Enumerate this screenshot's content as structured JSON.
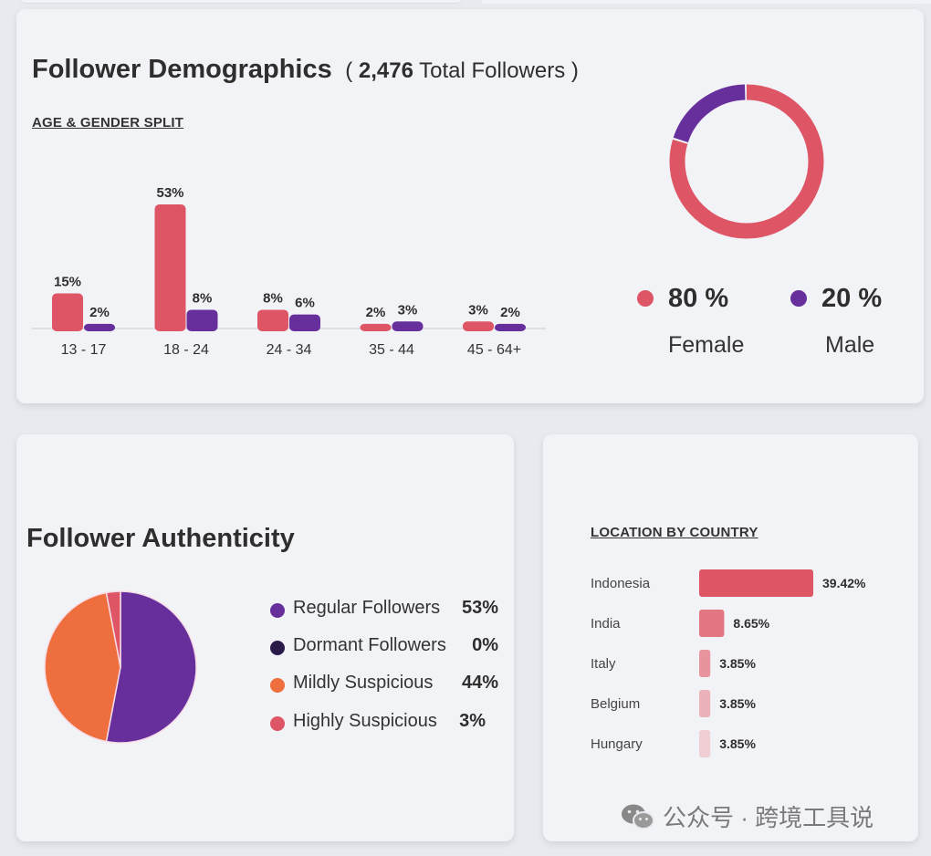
{
  "demographics": {
    "title": "Follower Demographics",
    "paren_open": "(",
    "total_value": "2,476",
    "total_label": "Total Followers",
    "paren_close": ")",
    "section_label": "AGE & GENDER SPLIT"
  },
  "gender": {
    "female_pct": "80 %",
    "female_label": "Female",
    "male_pct": "20 %",
    "male_label": "Male"
  },
  "authenticity": {
    "title": "Follower Authenticity",
    "items": [
      {
        "label": "Regular Followers",
        "pct": "53%"
      },
      {
        "label": "Dormant Followers",
        "pct": "0%"
      },
      {
        "label": "Mildly Suspicious",
        "pct": "44%"
      },
      {
        "label": "Highly Suspicious",
        "pct": "3%"
      }
    ]
  },
  "location": {
    "section_label": "LOCATION BY COUNTRY"
  },
  "watermark": {
    "text": "公众号 · 跨境工具说",
    "icon": "wechat-icon"
  },
  "colors": {
    "female": "#de5566",
    "male": "#662f9c",
    "regular": "#662f9c",
    "dormant": "#2a1a4a",
    "mild": "#ee6e3d",
    "high": "#de5566"
  },
  "chart_data": [
    {
      "type": "bar",
      "categories": [
        "13 - 17",
        "18 - 24",
        "24 - 34",
        "35 - 44",
        "45 - 64+"
      ],
      "series": [
        {
          "values": [
            15,
            53,
            8,
            2,
            3
          ],
          "labels": [
            "15%",
            "53%",
            "8%",
            "2%",
            "3%"
          ],
          "color": "#de5566"
        },
        {
          "values": [
            2,
            8,
            6,
            3,
            2
          ],
          "labels": [
            "2%",
            "8%",
            "6%",
            "3%",
            "2%"
          ],
          "color": "#662f9c"
        }
      ],
      "ylim": [
        0,
        53
      ]
    },
    {
      "type": "pie",
      "donut": true,
      "slices": [
        {
          "value": 80,
          "color": "#de5566"
        },
        {
          "value": 20,
          "color": "#662f9c"
        }
      ]
    },
    {
      "type": "pie",
      "slices": [
        {
          "label": "Regular Followers",
          "value": 53,
          "color": "#662f9c"
        },
        {
          "label": "Dormant Followers",
          "value": 0,
          "color": "#2a1a4a"
        },
        {
          "label": "Mildly Suspicious",
          "value": 44,
          "color": "#ee6e3d"
        },
        {
          "label": "Highly Suspicious",
          "value": 3,
          "color": "#de5566"
        }
      ]
    },
    {
      "type": "bar",
      "orientation": "horizontal",
      "categories": [
        "Indonesia",
        "India",
        "Italy",
        "Belgium",
        "Hungary"
      ],
      "values": [
        39.42,
        8.65,
        3.85,
        3.85,
        3.85
      ],
      "labels": [
        "39.42%",
        "8.65%",
        "3.85%",
        "3.85%",
        "3.85%"
      ],
      "colors": [
        "#de5566",
        "#e27683",
        "#e7949e",
        "#ebb2b9",
        "#efcfd4"
      ],
      "xlim": [
        0,
        39.42
      ]
    }
  ]
}
